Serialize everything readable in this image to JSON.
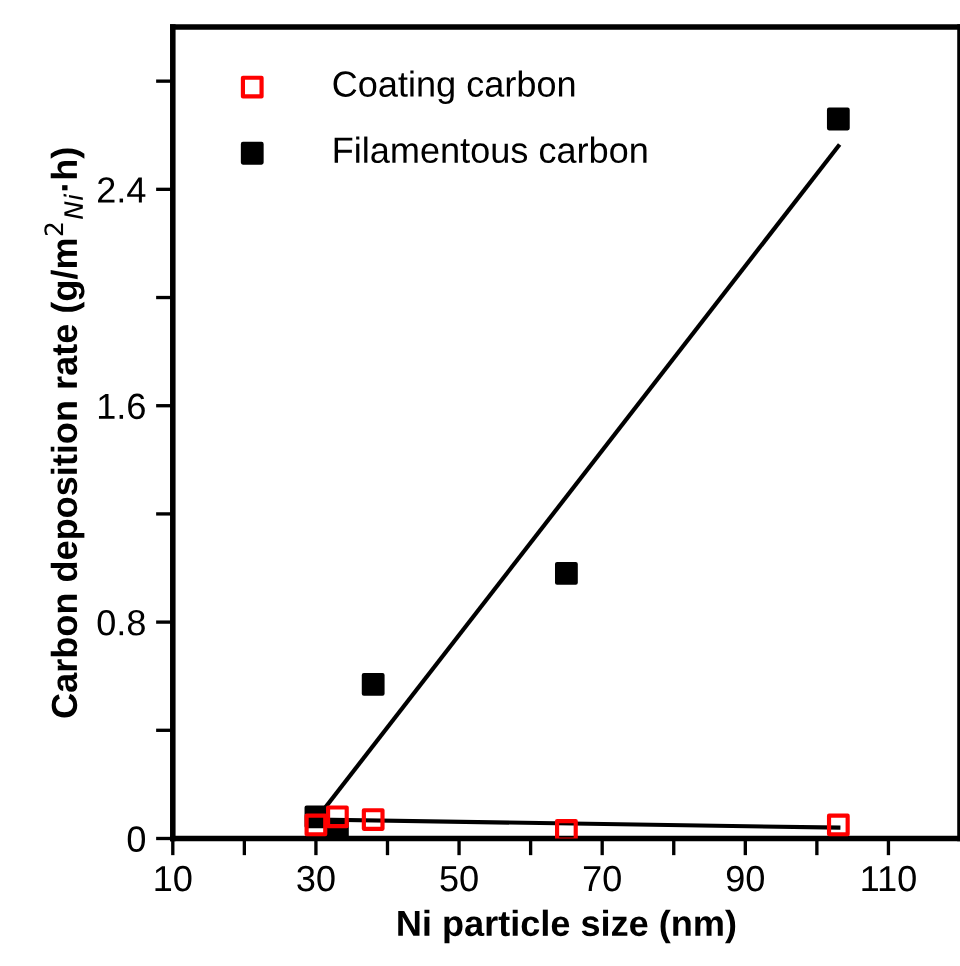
{
  "chart_data": {
    "type": "scatter",
    "xlabel": "Ni particle size (nm)",
    "ylabel": "Carbon deposition rate (g/m$^{2}$$_{Ni}$·h)",
    "xlim": [
      10,
      120
    ],
    "ylim": [
      0,
      3.0
    ],
    "xticks": [
      10,
      {
        "value": 20,
        "label": null
      },
      30,
      {
        "value": 40,
        "label": null
      },
      50,
      {
        "value": 60,
        "label": null
      },
      70,
      {
        "value": 80,
        "label": null
      },
      90,
      {
        "value": 100,
        "label": null
      },
      110
    ],
    "yticks": [
      0,
      {
        "value": 0.4,
        "label": null
      },
      0.8,
      {
        "value": 1.2,
        "label": null
      },
      1.6,
      {
        "value": 2.0,
        "label": null
      },
      2.4,
      {
        "value": 2.8,
        "label": null
      }
    ],
    "grid": false,
    "legend": "top left",
    "marker": "square",
    "series": [
      {
        "name": "Coating carbon",
        "color": "#ff0000",
        "x": [
          30,
          33,
          38,
          65,
          103
        ],
        "values": [
          0.05,
          0.08,
          0.07,
          0.03,
          0.05
        ]
      },
      {
        "name": "Filamentous carbon",
        "color": "#000000",
        "x": [
          30,
          33,
          38,
          65,
          103
        ],
        "values": [
          0.08,
          0.03,
          0.57,
          0.98,
          2.66
        ]
      },
      {
        "type": "line",
        "marker": "none",
        "color": "#000000",
        "x": [
          30,
          103
        ],
        "values": [
          0.07,
          0.04
        ]
      },
      {
        "type": "line",
        "marker": "none",
        "color": "#000000",
        "x": [
          30,
          103
        ],
        "values": [
          0.07,
          2.56
        ]
      }
    ]
  }
}
